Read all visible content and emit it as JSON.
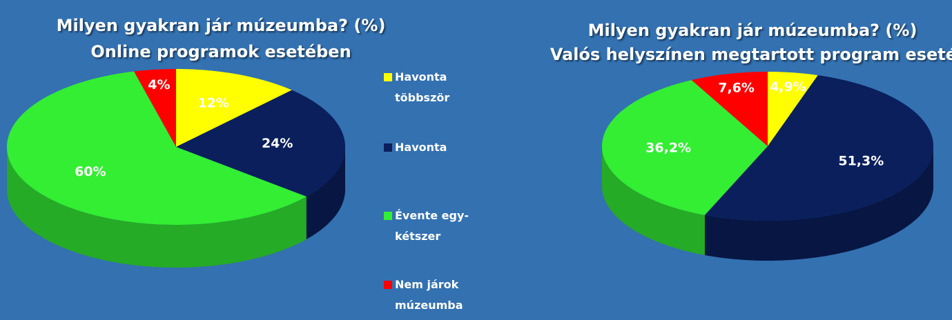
{
  "chart_data": [
    {
      "type": "pie",
      "title": "Milyen gyakran jár múzeumba? (%)",
      "subtitle": "Online programok esetében",
      "categories": [
        "Havonta többször",
        "Havonta",
        "Évente egy-kétszer",
        "Nem járok múzeumba"
      ],
      "values": [
        12,
        24,
        60,
        4
      ],
      "value_labels": [
        "12%",
        "24%",
        "60%",
        "4%"
      ],
      "colors": [
        "#ffff00",
        "#0a1f5c",
        "#33ee33",
        "#ff0000"
      ]
    },
    {
      "type": "pie",
      "title": "Milyen gyakran jár múzeumba? (%)",
      "subtitle": "Valós helyszínen megtartott program esetén",
      "values": [
        4.9,
        51.3,
        36.2,
        7.6
      ],
      "value_labels": [
        "4,9%",
        "51,3%",
        "36,2%",
        "7,6%"
      ],
      "colors": [
        "#ffff00",
        "#0a1f5c",
        "#33ee33",
        "#ff0000"
      ]
    }
  ]
}
